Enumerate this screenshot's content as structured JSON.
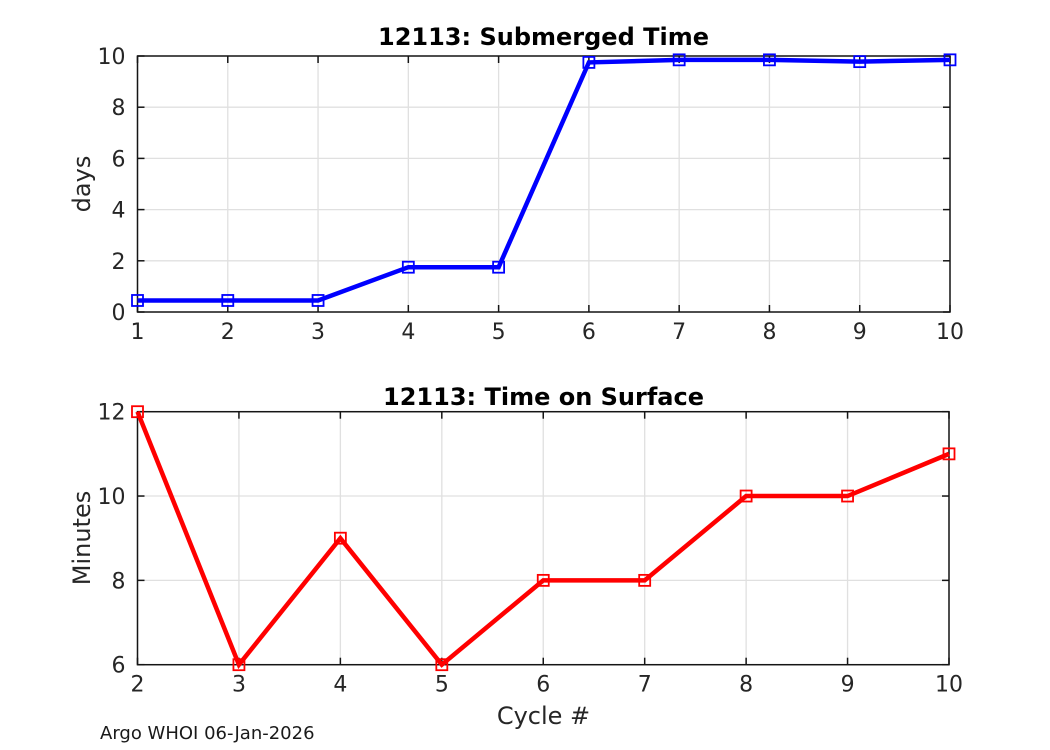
{
  "figure": {
    "footer": "Argo WHOI 06-Jan-2026",
    "background": "#ffffff"
  },
  "style": {
    "axis_color": "#151515",
    "tick_label_color": "#262626",
    "grid_color": "#e0e0e0",
    "title_color": "#000000"
  },
  "chart_data": [
    {
      "type": "line",
      "title": "12113: Submerged Time",
      "xlabel": "",
      "ylabel": "days",
      "x": [
        1,
        2,
        3,
        4,
        5,
        6,
        7,
        8,
        9,
        10
      ],
      "values": [
        0.45,
        0.45,
        0.45,
        1.75,
        1.75,
        9.75,
        9.85,
        9.85,
        9.78,
        9.85
      ],
      "xlim": [
        1,
        10
      ],
      "ylim": [
        0,
        10
      ],
      "xticks": [
        1,
        2,
        3,
        4,
        5,
        6,
        7,
        8,
        9,
        10
      ],
      "yticks": [
        0,
        2,
        4,
        6,
        8,
        10
      ],
      "line_color": "#0000ff",
      "marker": "square-open",
      "grid": true,
      "legend": "none"
    },
    {
      "type": "line",
      "title": "12113: Time on Surface",
      "xlabel": "Cycle #",
      "ylabel": "Minutes",
      "x": [
        2,
        3,
        4,
        5,
        6,
        7,
        8,
        9,
        10
      ],
      "values": [
        12,
        6,
        9,
        6,
        8,
        8,
        10,
        10,
        11
      ],
      "xlim": [
        2,
        10
      ],
      "ylim": [
        6,
        12
      ],
      "xticks": [
        2,
        3,
        4,
        5,
        6,
        7,
        8,
        9,
        10
      ],
      "yticks": [
        6,
        8,
        10,
        12
      ],
      "line_color": "#ff0000",
      "marker": "square-open",
      "grid": true,
      "legend": "none"
    }
  ]
}
